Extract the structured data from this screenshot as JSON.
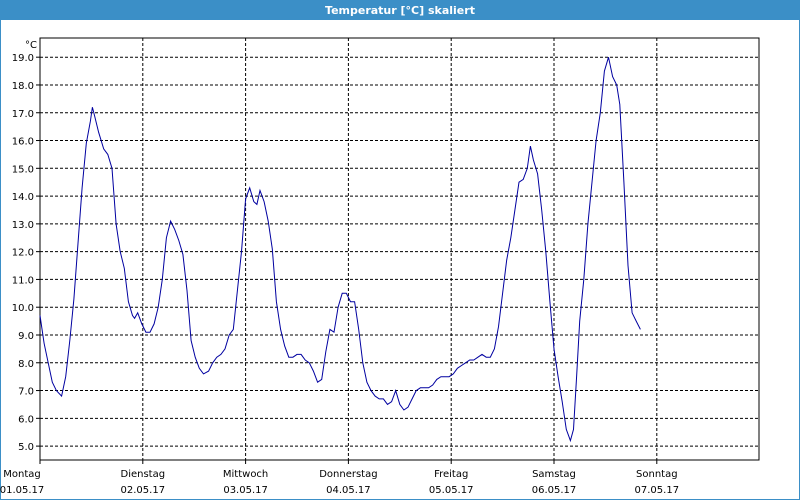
{
  "window": {
    "title": "Temperatur [°C] skaliert"
  },
  "chart_data": {
    "type": "line",
    "ylabel": "°C",
    "ylim": [
      4.5,
      19.5
    ],
    "yticks": [
      "5.0",
      "6.0",
      "7.0",
      "8.0",
      "9.0",
      "10.0",
      "11.0",
      "12.0",
      "13.0",
      "14.0",
      "15.0",
      "16.0",
      "17.0",
      "18.0",
      "19.0"
    ],
    "xlim": [
      0,
      7
    ],
    "grid": true,
    "days": [
      {
        "weekday": "Montag",
        "date": "01.05.17"
      },
      {
        "weekday": "Dienstag",
        "date": "02.05.17"
      },
      {
        "weekday": "Mittwoch",
        "date": "03.05.17"
      },
      {
        "weekday": "Donnerstag",
        "date": "04.05.17"
      },
      {
        "weekday": "Freitag",
        "date": "05.05.17"
      },
      {
        "weekday": "Samstag",
        "date": "06.05.17"
      },
      {
        "weekday": "Sonntag",
        "date": "07.05.17"
      }
    ],
    "series": [
      {
        "color": "#0000a0",
        "points": [
          [
            0.0,
            9.7
          ],
          [
            0.04,
            8.7
          ],
          [
            0.08,
            8.0
          ],
          [
            0.12,
            7.3
          ],
          [
            0.16,
            7.0
          ],
          [
            0.21,
            6.8
          ],
          [
            0.25,
            7.5
          ],
          [
            0.29,
            8.8
          ],
          [
            0.33,
            10.3
          ],
          [
            0.37,
            12.3
          ],
          [
            0.41,
            14.3
          ],
          [
            0.45,
            15.9
          ],
          [
            0.49,
            16.7
          ],
          [
            0.51,
            17.2
          ],
          [
            0.53,
            16.9
          ],
          [
            0.57,
            16.3
          ],
          [
            0.62,
            15.7
          ],
          [
            0.66,
            15.5
          ],
          [
            0.7,
            15.0
          ],
          [
            0.74,
            13.0
          ],
          [
            0.78,
            12.0
          ],
          [
            0.82,
            11.4
          ],
          [
            0.86,
            10.2
          ],
          [
            0.9,
            9.7
          ],
          [
            0.92,
            9.6
          ],
          [
            0.95,
            9.8
          ],
          [
            0.99,
            9.4
          ],
          [
            1.03,
            9.1
          ],
          [
            1.07,
            9.1
          ],
          [
            1.11,
            9.4
          ],
          [
            1.15,
            10.0
          ],
          [
            1.19,
            11.0
          ],
          [
            1.23,
            12.5
          ],
          [
            1.27,
            13.1
          ],
          [
            1.31,
            12.8
          ],
          [
            1.35,
            12.4
          ],
          [
            1.39,
            11.9
          ],
          [
            1.43,
            10.6
          ],
          [
            1.47,
            8.8
          ],
          [
            1.51,
            8.2
          ],
          [
            1.55,
            7.8
          ],
          [
            1.59,
            7.6
          ],
          [
            1.64,
            7.7
          ],
          [
            1.68,
            8.0
          ],
          [
            1.72,
            8.2
          ],
          [
            1.76,
            8.3
          ],
          [
            1.8,
            8.5
          ],
          [
            1.84,
            9.0
          ],
          [
            1.88,
            9.2
          ],
          [
            1.92,
            10.6
          ],
          [
            1.96,
            12.0
          ],
          [
            2.0,
            13.9
          ],
          [
            2.04,
            14.3
          ],
          [
            2.08,
            13.8
          ],
          [
            2.11,
            13.7
          ],
          [
            2.14,
            14.2
          ],
          [
            2.18,
            13.8
          ],
          [
            2.22,
            13.1
          ],
          [
            2.26,
            12.1
          ],
          [
            2.3,
            10.2
          ],
          [
            2.34,
            9.2
          ],
          [
            2.38,
            8.6
          ],
          [
            2.42,
            8.2
          ],
          [
            2.46,
            8.2
          ],
          [
            2.5,
            8.3
          ],
          [
            2.54,
            8.3
          ],
          [
            2.58,
            8.1
          ],
          [
            2.62,
            8.0
          ],
          [
            2.66,
            7.7
          ],
          [
            2.7,
            7.3
          ],
          [
            2.74,
            7.4
          ],
          [
            2.78,
            8.4
          ],
          [
            2.82,
            9.2
          ],
          [
            2.86,
            9.1
          ],
          [
            2.9,
            10.0
          ],
          [
            2.94,
            10.5
          ],
          [
            2.98,
            10.5
          ],
          [
            3.02,
            10.2
          ],
          [
            3.06,
            10.2
          ],
          [
            3.1,
            9.2
          ],
          [
            3.14,
            8.0
          ],
          [
            3.18,
            7.3
          ],
          [
            3.22,
            7.0
          ],
          [
            3.26,
            6.8
          ],
          [
            3.3,
            6.7
          ],
          [
            3.34,
            6.7
          ],
          [
            3.38,
            6.5
          ],
          [
            3.42,
            6.6
          ],
          [
            3.46,
            7.0
          ],
          [
            3.5,
            6.5
          ],
          [
            3.54,
            6.3
          ],
          [
            3.58,
            6.4
          ],
          [
            3.62,
            6.7
          ],
          [
            3.66,
            7.0
          ],
          [
            3.7,
            7.1
          ],
          [
            3.74,
            7.1
          ],
          [
            3.78,
            7.1
          ],
          [
            3.82,
            7.2
          ],
          [
            3.86,
            7.4
          ],
          [
            3.9,
            7.5
          ],
          [
            3.94,
            7.5
          ],
          [
            3.98,
            7.5
          ],
          [
            4.02,
            7.6
          ],
          [
            4.06,
            7.8
          ],
          [
            4.1,
            7.9
          ],
          [
            4.14,
            8.0
          ],
          [
            4.18,
            8.1
          ],
          [
            4.22,
            8.1
          ],
          [
            4.26,
            8.2
          ],
          [
            4.3,
            8.3
          ],
          [
            4.34,
            8.2
          ],
          [
            4.38,
            8.2
          ],
          [
            4.42,
            8.5
          ],
          [
            4.46,
            9.3
          ],
          [
            4.5,
            10.5
          ],
          [
            4.54,
            11.7
          ],
          [
            4.58,
            12.5
          ],
          [
            4.62,
            13.5
          ],
          [
            4.66,
            14.5
          ],
          [
            4.7,
            14.6
          ],
          [
            4.74,
            15.0
          ],
          [
            4.77,
            15.8
          ],
          [
            4.8,
            15.3
          ],
          [
            4.84,
            14.8
          ],
          [
            4.88,
            13.5
          ],
          [
            4.92,
            12.0
          ],
          [
            4.96,
            10.2
          ],
          [
            5.0,
            8.5
          ],
          [
            5.04,
            7.5
          ],
          [
            5.08,
            6.6
          ],
          [
            5.12,
            5.6
          ],
          [
            5.16,
            5.2
          ],
          [
            5.19,
            5.6
          ],
          [
            5.22,
            7.5
          ],
          [
            5.25,
            9.5
          ],
          [
            5.29,
            11.0
          ],
          [
            5.33,
            13.0
          ],
          [
            5.37,
            14.5
          ],
          [
            5.41,
            16.0
          ],
          [
            5.45,
            17.0
          ],
          [
            5.49,
            18.5
          ],
          [
            5.53,
            19.0
          ],
          [
            5.57,
            18.3
          ],
          [
            5.61,
            18.0
          ],
          [
            5.64,
            17.3
          ],
          [
            5.68,
            14.5
          ],
          [
            5.72,
            11.5
          ],
          [
            5.76,
            9.8
          ],
          [
            5.8,
            9.5
          ],
          [
            5.84,
            9.2
          ]
        ]
      }
    ]
  }
}
